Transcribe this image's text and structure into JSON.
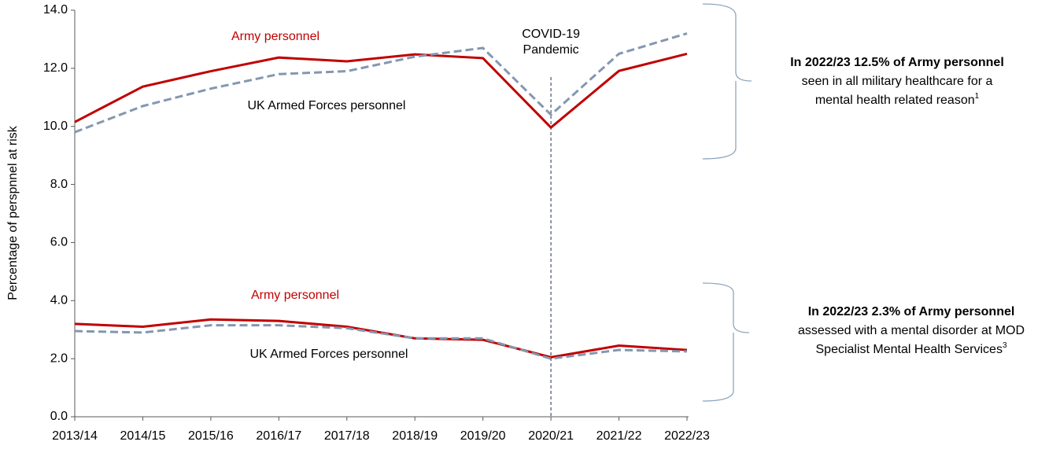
{
  "chart_data": {
    "type": "line",
    "y_label": "Percentage of perspnnel at risk",
    "categories": [
      "2013/14",
      "2014/15",
      "2015/16",
      "2016/17",
      "2017/18",
      "2018/19",
      "2019/20",
      "2020/21",
      "2021/22",
      "2022/23"
    ],
    "series": [
      {
        "name": "Army personnel",
        "color": "#c00000",
        "dashed": false,
        "values": [
          10.15,
          11.37,
          11.9,
          12.37,
          12.24,
          12.48,
          12.35,
          9.96,
          11.91,
          12.5
        ]
      },
      {
        "name": "UK Armed Forces personnel",
        "color": "#8497b0",
        "dashed": true,
        "values": [
          9.8,
          10.7,
          11.3,
          11.8,
          11.9,
          12.4,
          12.7,
          10.4,
          12.5,
          13.2
        ]
      },
      {
        "name": "Army personnel",
        "color": "#c00000",
        "dashed": false,
        "values": [
          3.2,
          3.1,
          3.35,
          3.3,
          3.1,
          2.7,
          2.65,
          2.05,
          2.45,
          2.3
        ]
      },
      {
        "name": "UK Armed Forces personnel",
        "color": "#8497b0",
        "dashed": true,
        "values": [
          2.95,
          2.9,
          3.15,
          3.15,
          3.05,
          2.7,
          2.7,
          2.0,
          2.3,
          2.25
        ]
      }
    ],
    "ylim": [
      0,
      14
    ],
    "yticks": [
      {
        "value": 0,
        "label": "0.0"
      },
      {
        "value": 2,
        "label": "2.0"
      },
      {
        "value": 4,
        "label": "4.0"
      },
      {
        "value": 6,
        "label": "6.0"
      },
      {
        "value": 8,
        "label": "8.0"
      },
      {
        "value": 10,
        "label": "10.0"
      },
      {
        "value": 12,
        "label": "12.0"
      },
      {
        "value": 14,
        "label": "14.0"
      }
    ],
    "annotations": [
      {
        "lines": [
          "COVID-19",
          "Pandemic"
        ],
        "x": "2020/21"
      }
    ],
    "callouts": [
      {
        "bold": "In 2022/23 12.5% of Army personnel",
        "lines": [
          "seen in all military healthcare for a",
          "mental health related reason"
        ],
        "sup": "1"
      },
      {
        "bold": "In 2022/23 2.3% of Army personnel",
        "lines": [
          "assessed with a mental disorder at MOD",
          "Specialist Mental Health Services"
        ],
        "sup": "3"
      }
    ]
  }
}
